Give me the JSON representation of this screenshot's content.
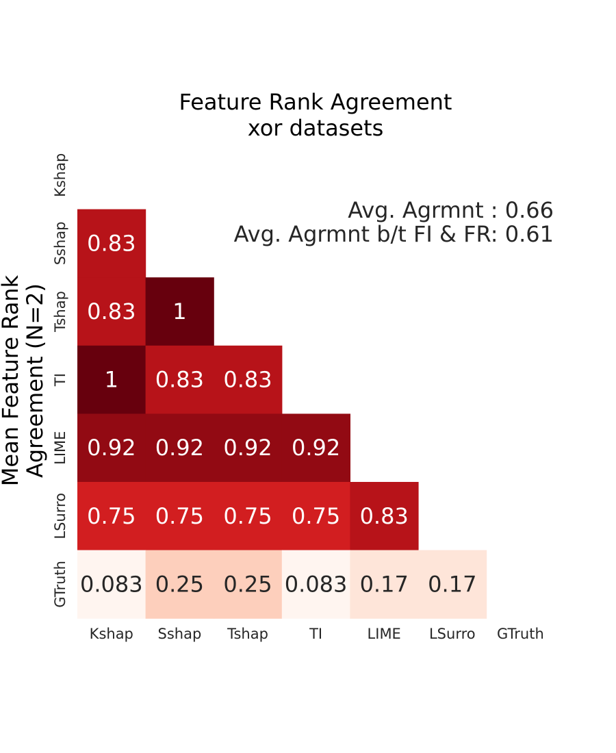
{
  "chart_data": {
    "type": "heatmap",
    "title": [
      "Feature Rank Agreement",
      "xor datasets"
    ],
    "ylabel": [
      "Mean Feature Rank",
      "Agreement (N=2)"
    ],
    "xlabel": "",
    "x_categories": [
      "Kshap",
      "Sshap",
      "Tshap",
      "TI",
      "LIME",
      "LSurro",
      "GTruth"
    ],
    "y_categories": [
      "Kshap",
      "Sshap",
      "Tshap",
      "TI",
      "LIME",
      "LSurro",
      "GTruth"
    ],
    "colormap": "Reds",
    "mask": "upper-triangle-and-diagonal",
    "values": [
      [
        null,
        null,
        null,
        null,
        null,
        null,
        null
      ],
      [
        0.83,
        null,
        null,
        null,
        null,
        null,
        null
      ],
      [
        0.83,
        1,
        null,
        null,
        null,
        null,
        null
      ],
      [
        1,
        0.83,
        0.83,
        null,
        null,
        null,
        null
      ],
      [
        0.92,
        0.92,
        0.92,
        0.92,
        null,
        null,
        null
      ],
      [
        0.75,
        0.75,
        0.75,
        0.75,
        0.83,
        null,
        null
      ],
      [
        0.083,
        0.25,
        0.25,
        0.083,
        0.17,
        0.17,
        null
      ]
    ],
    "value_labels": [
      [
        null,
        null,
        null,
        null,
        null,
        null,
        null
      ],
      [
        "0.83",
        null,
        null,
        null,
        null,
        null,
        null
      ],
      [
        "0.83",
        "1",
        null,
        null,
        null,
        null,
        null
      ],
      [
        "1",
        "0.83",
        "0.83",
        null,
        null,
        null,
        null
      ],
      [
        "0.92",
        "0.92",
        "0.92",
        "0.92",
        null,
        null,
        null
      ],
      [
        "0.75",
        "0.75",
        "0.75",
        "0.75",
        "0.83",
        null,
        null
      ],
      [
        "0.083",
        "0.25",
        "0.25",
        "0.083",
        "0.17",
        "0.17",
        null
      ]
    ],
    "annotations": [
      "Avg. Agrmnt : 0.66",
      "Avg. Agrmnt b/t FI & FR: 0.61"
    ]
  }
}
